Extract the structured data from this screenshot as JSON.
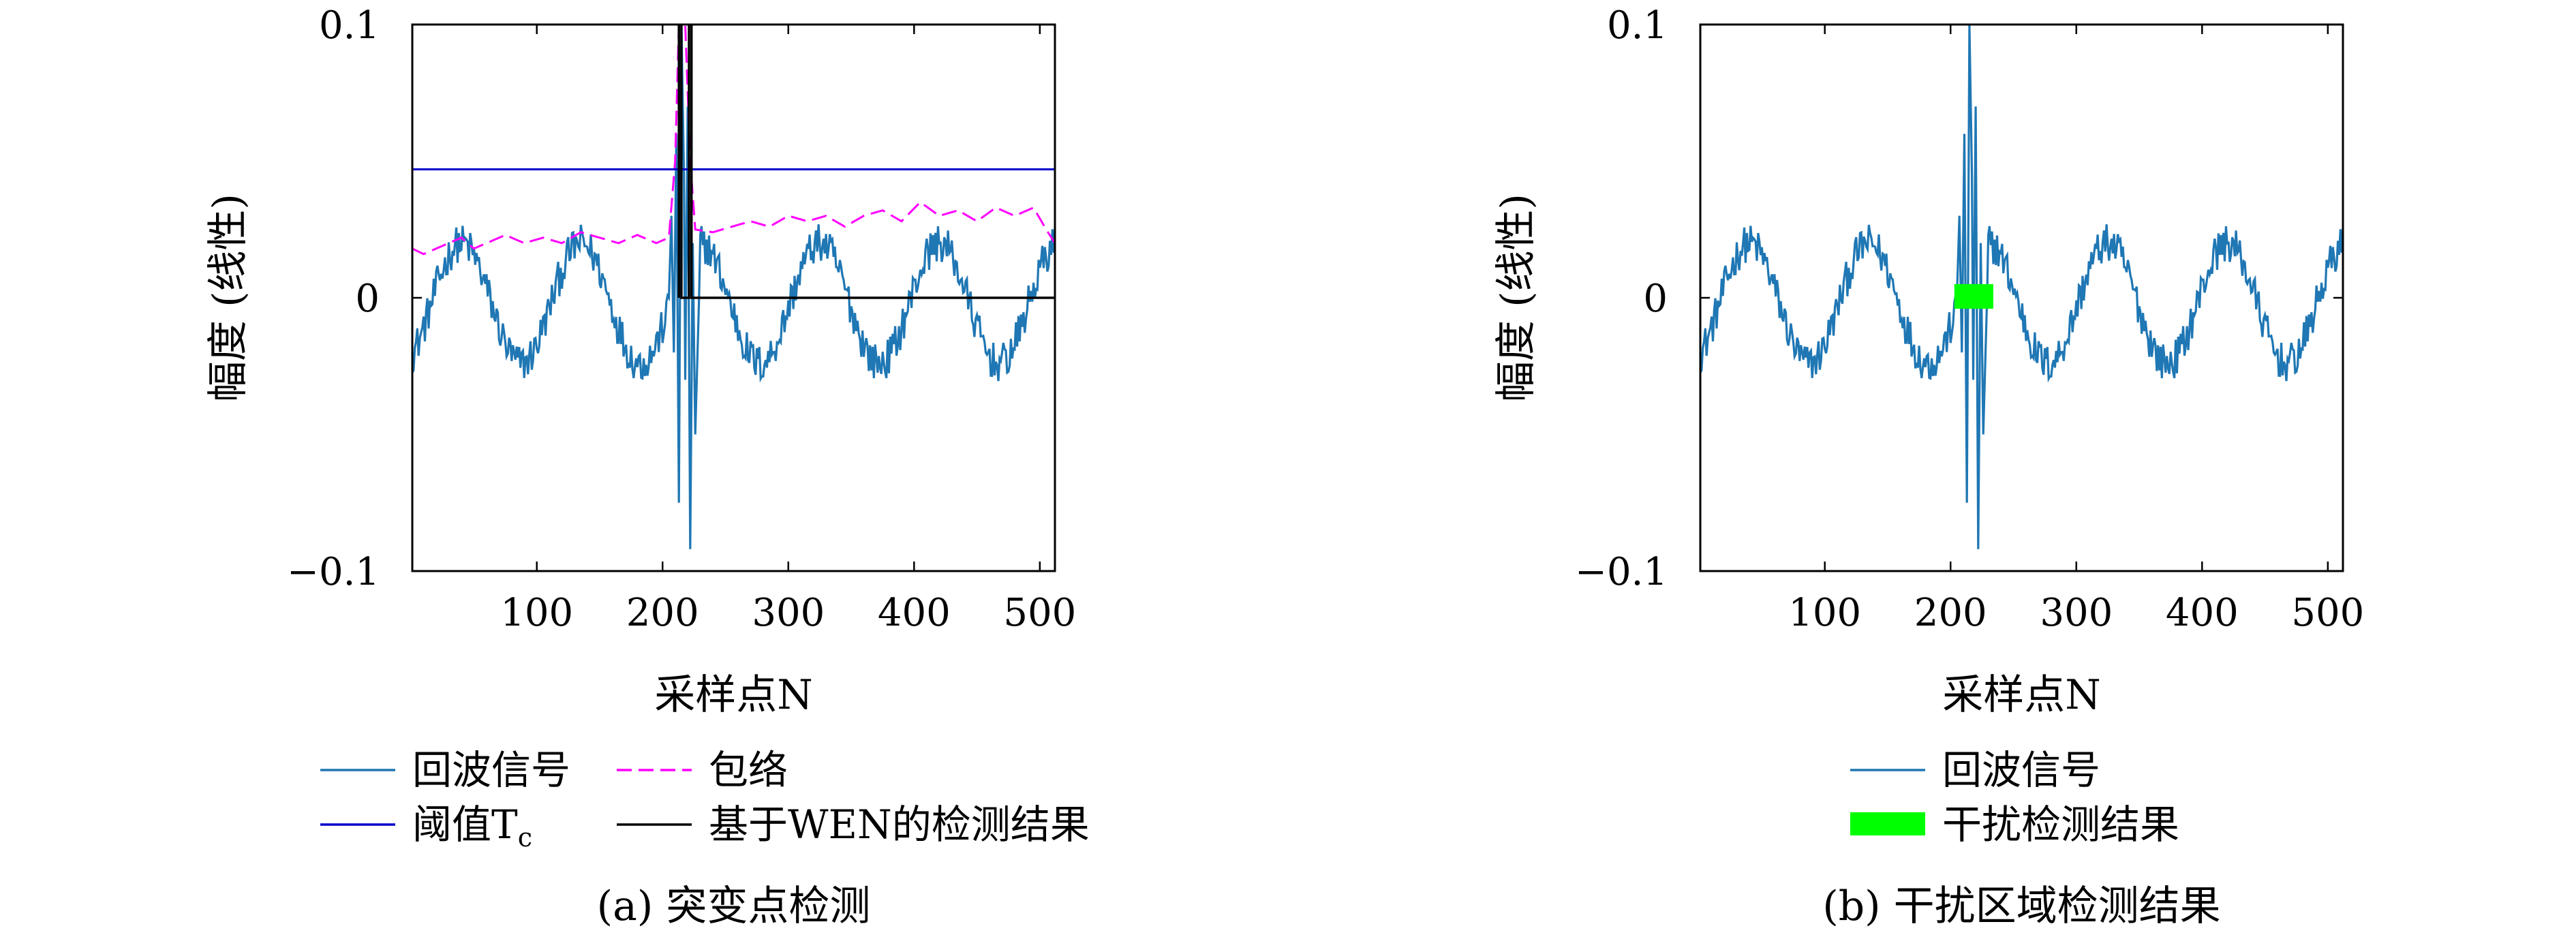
{
  "chart_data": [
    {
      "type": "line",
      "caption": "(a) 突变点检测",
      "xlabel": "采样点N",
      "ylabel": "幅度 (线性)",
      "xlim": [
        1,
        512
      ],
      "ylim": [
        -0.1,
        0.1
      ],
      "xticks": [
        100,
        200,
        300,
        400,
        500
      ],
      "yticks": [
        -0.1,
        0,
        0.1
      ],
      "ytick_labels": [
        "−0.1",
        "0",
        "0.1"
      ],
      "grid": false,
      "legend_position": "bottom",
      "series": [
        {
          "name": "回波信号",
          "color": "#1f77b4",
          "style": "solid",
          "base_amplitude": 0.022,
          "base_offset": -0.002,
          "base_period": 95,
          "base_phase_sample": 40,
          "noise_amplitude": 0.007,
          "spike_points": [
            [
              205,
              0.0
            ],
            [
              207,
              0.03
            ],
            [
              209,
              -0.02
            ],
            [
              211,
              0.06
            ],
            [
              213,
              -0.075
            ],
            [
              215,
              0.1
            ],
            [
              217,
              0.045
            ],
            [
              218,
              -0.03
            ],
            [
              220,
              0.07
            ],
            [
              222,
              -0.092
            ],
            [
              224,
              0.02
            ],
            [
              226,
              -0.05
            ],
            [
              229,
              0.0
            ]
          ]
        },
        {
          "name": "包络",
          "color": "#ff00ff",
          "style": "dashed",
          "points": [
            [
              1,
              0.018
            ],
            [
              10,
              0.016
            ],
            [
              20,
              0.018
            ],
            [
              30,
              0.02
            ],
            [
              40,
              0.022
            ],
            [
              50,
              0.018
            ],
            [
              60,
              0.02
            ],
            [
              75,
              0.023
            ],
            [
              90,
              0.02
            ],
            [
              105,
              0.022
            ],
            [
              120,
              0.02
            ],
            [
              135,
              0.024
            ],
            [
              150,
              0.022
            ],
            [
              165,
              0.02
            ],
            [
              180,
              0.023
            ],
            [
              195,
              0.02
            ],
            [
              205,
              0.022
            ],
            [
              210,
              0.05
            ],
            [
              213,
              0.1
            ],
            [
              218,
              0.1
            ],
            [
              222,
              0.05
            ],
            [
              226,
              0.025
            ],
            [
              240,
              0.024
            ],
            [
              255,
              0.026
            ],
            [
              270,
              0.028
            ],
            [
              285,
              0.026
            ],
            [
              300,
              0.03
            ],
            [
              315,
              0.028
            ],
            [
              330,
              0.03
            ],
            [
              345,
              0.026
            ],
            [
              360,
              0.03
            ],
            [
              375,
              0.032
            ],
            [
              390,
              0.028
            ],
            [
              405,
              0.035
            ],
            [
              420,
              0.03
            ],
            [
              435,
              0.032
            ],
            [
              450,
              0.028
            ],
            [
              465,
              0.033
            ],
            [
              480,
              0.03
            ],
            [
              495,
              0.033
            ],
            [
              505,
              0.025
            ],
            [
              512,
              0.02
            ]
          ]
        },
        {
          "name": "阈值T",
          "name_subscript": "c",
          "color": "#0000cc",
          "style": "solid",
          "value": 0.047
        },
        {
          "name": "基于WEN的检测结果",
          "color": "#000000",
          "style": "solid",
          "points": [
            [
              213,
              0.0
            ],
            [
              213,
              0.1
            ],
            [
              215,
              0.1
            ],
            [
              215,
              0.0
            ],
            [
              221,
              0.0
            ],
            [
              221,
              0.1
            ],
            [
              223,
              0.1
            ],
            [
              223,
              0.0
            ],
            [
              512,
              0.0
            ]
          ]
        }
      ]
    },
    {
      "type": "line",
      "caption": "(b) 干扰区域检测结果",
      "xlabel": "采样点N",
      "ylabel": "幅度 (线性)",
      "xlim": [
        1,
        512
      ],
      "ylim": [
        -0.1,
        0.1
      ],
      "xticks": [
        100,
        200,
        300,
        400,
        500
      ],
      "yticks": [
        -0.1,
        0,
        0.1
      ],
      "ytick_labels": [
        "−0.1",
        "0",
        "0.1"
      ],
      "grid": false,
      "legend_position": "bottom",
      "series": [
        {
          "name": "回波信号",
          "color": "#1f77b4",
          "style": "solid",
          "base_amplitude": 0.022,
          "base_offset": -0.002,
          "base_period": 95,
          "base_phase_sample": 40,
          "noise_amplitude": 0.007,
          "spike_points": [
            [
              205,
              0.0
            ],
            [
              207,
              0.03
            ],
            [
              209,
              -0.02
            ],
            [
              211,
              0.06
            ],
            [
              213,
              -0.075
            ],
            [
              215,
              0.1
            ],
            [
              217,
              0.045
            ],
            [
              218,
              -0.03
            ],
            [
              220,
              0.07
            ],
            [
              222,
              -0.092
            ],
            [
              224,
              0.02
            ],
            [
              226,
              -0.05
            ],
            [
              229,
              0.0
            ]
          ]
        },
        {
          "name": "干扰检测结果",
          "color": "#00ff00",
          "style": "bar",
          "x_range": [
            203,
            234
          ],
          "y_range": [
            -0.004,
            0.005
          ]
        }
      ]
    }
  ]
}
